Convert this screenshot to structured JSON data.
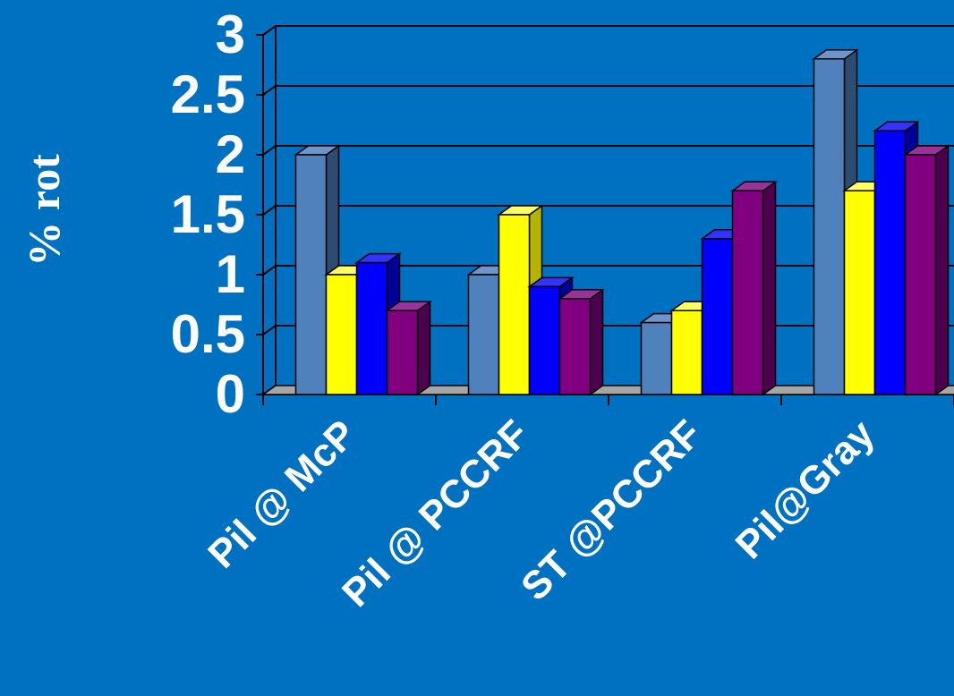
{
  "chart_data": {
    "type": "bar",
    "title": "",
    "xlabel": "",
    "ylabel": "% rot",
    "categories": [
      "Pil @ McP",
      "Pil @ PCCRF",
      "ST @PCCRF",
      "Pil@Gray"
    ],
    "series": [
      {
        "values": [
          2.0,
          1.0,
          0.6,
          2.8
        ]
      },
      {
        "values": [
          1.0,
          1.5,
          0.7,
          1.7
        ]
      },
      {
        "values": [
          1.1,
          0.9,
          1.3,
          2.2
        ]
      },
      {
        "values": [
          0.7,
          0.8,
          1.7,
          2.0
        ]
      }
    ],
    "ylim": [
      0,
      3
    ],
    "yticks": [
      "0",
      "0.5",
      "1",
      "1.5",
      "2",
      "2.5",
      "3"
    ],
    "grid": true,
    "three_d": true,
    "legend": "none",
    "colors": {
      "background": "#0070C0",
      "series": [
        "#4F81BD",
        "#FFFF00",
        "#0000FF",
        "#800080"
      ],
      "series_top": [
        "#6E95CA",
        "#FFFF66",
        "#3333FF",
        "#993399"
      ],
      "series_side": [
        "#2E4B70",
        "#B3B300",
        "#000099",
        "#4D004D"
      ],
      "floor": "#A6A6A6"
    }
  }
}
